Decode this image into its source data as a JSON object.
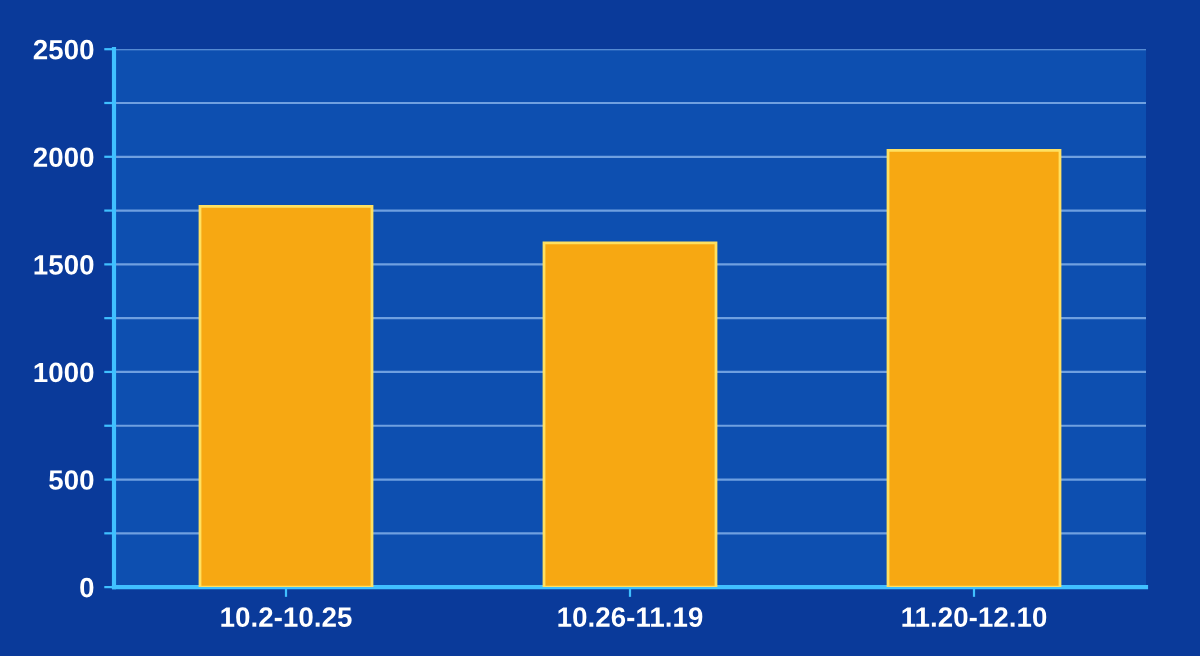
{
  "chart_data": {
    "type": "bar",
    "categories": [
      "10.2-10.25",
      "10.26-11.19",
      "11.20-12.10"
    ],
    "values": [
      1770,
      1600,
      2030
    ],
    "color": "#f7a812",
    "ylim": [
      0,
      2500
    ],
    "yticks": [
      0,
      {
        "value": 250,
        "label": null
      },
      500,
      {
        "value": 750,
        "label": null
      },
      1000,
      {
        "value": 1250,
        "label": null
      },
      1500,
      {
        "value": 1750,
        "label": null
      },
      2000,
      {
        "value": 2250,
        "label": null
      },
      2500
    ],
    "grid": "y"
  }
}
